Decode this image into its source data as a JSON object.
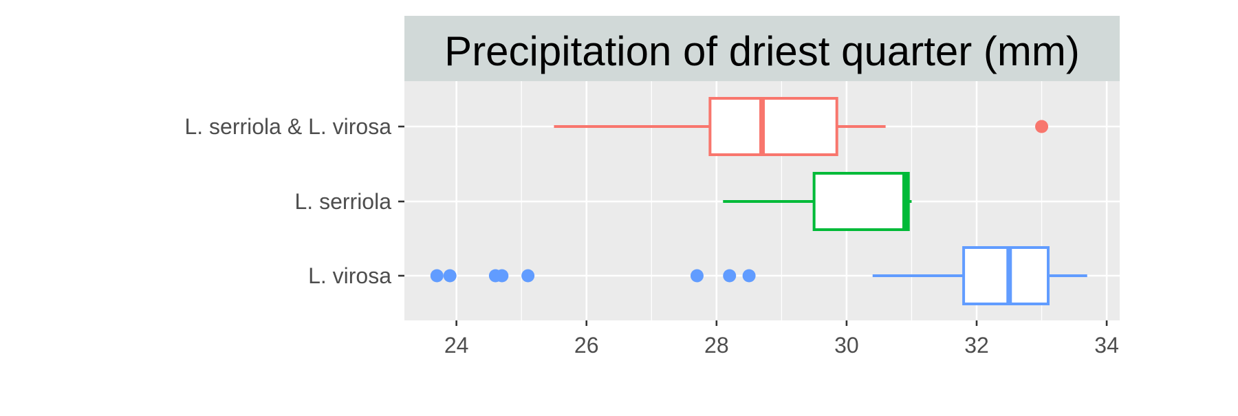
{
  "chart_data": {
    "type": "boxplot",
    "title": "Precipitation of driest quarter (mm)",
    "orientation": "horizontal",
    "xlim": [
      23.2,
      34.2
    ],
    "xticks": [
      24,
      26,
      28,
      30,
      32,
      34
    ],
    "x_minor_gridlines": [
      25,
      27,
      29,
      31,
      33
    ],
    "grid": true,
    "legend": "none",
    "categories": [
      "L. serriola & L. virosa",
      "L. serriola",
      "L. virosa"
    ],
    "series": [
      {
        "name": "L. serriola & L. virosa",
        "color": "#F8766D",
        "whisker_low": 25.5,
        "q1": 27.9,
        "median": 28.7,
        "q3": 29.85,
        "whisker_high": 30.6,
        "outliers": [
          33.0
        ]
      },
      {
        "name": "L. serriola",
        "color": "#00BA38",
        "whisker_low": 28.1,
        "q1": 29.5,
        "median": 30.9,
        "q3": 30.95,
        "whisker_high": 31.0,
        "outliers": []
      },
      {
        "name": "L. virosa",
        "color": "#619CFF",
        "whisker_low": 30.4,
        "q1": 31.8,
        "median": 32.5,
        "q3": 33.1,
        "whisker_high": 33.7,
        "outliers": [
          23.7,
          23.9,
          24.6,
          24.7,
          25.1,
          27.7,
          28.2,
          28.5
        ]
      }
    ],
    "colors": {
      "panel_background": "#EBEBEB",
      "strip_background": "#D1D9D8",
      "grid": "#FFFFFF",
      "axis_text": "#4D4D4D",
      "tick": "#333333"
    }
  }
}
